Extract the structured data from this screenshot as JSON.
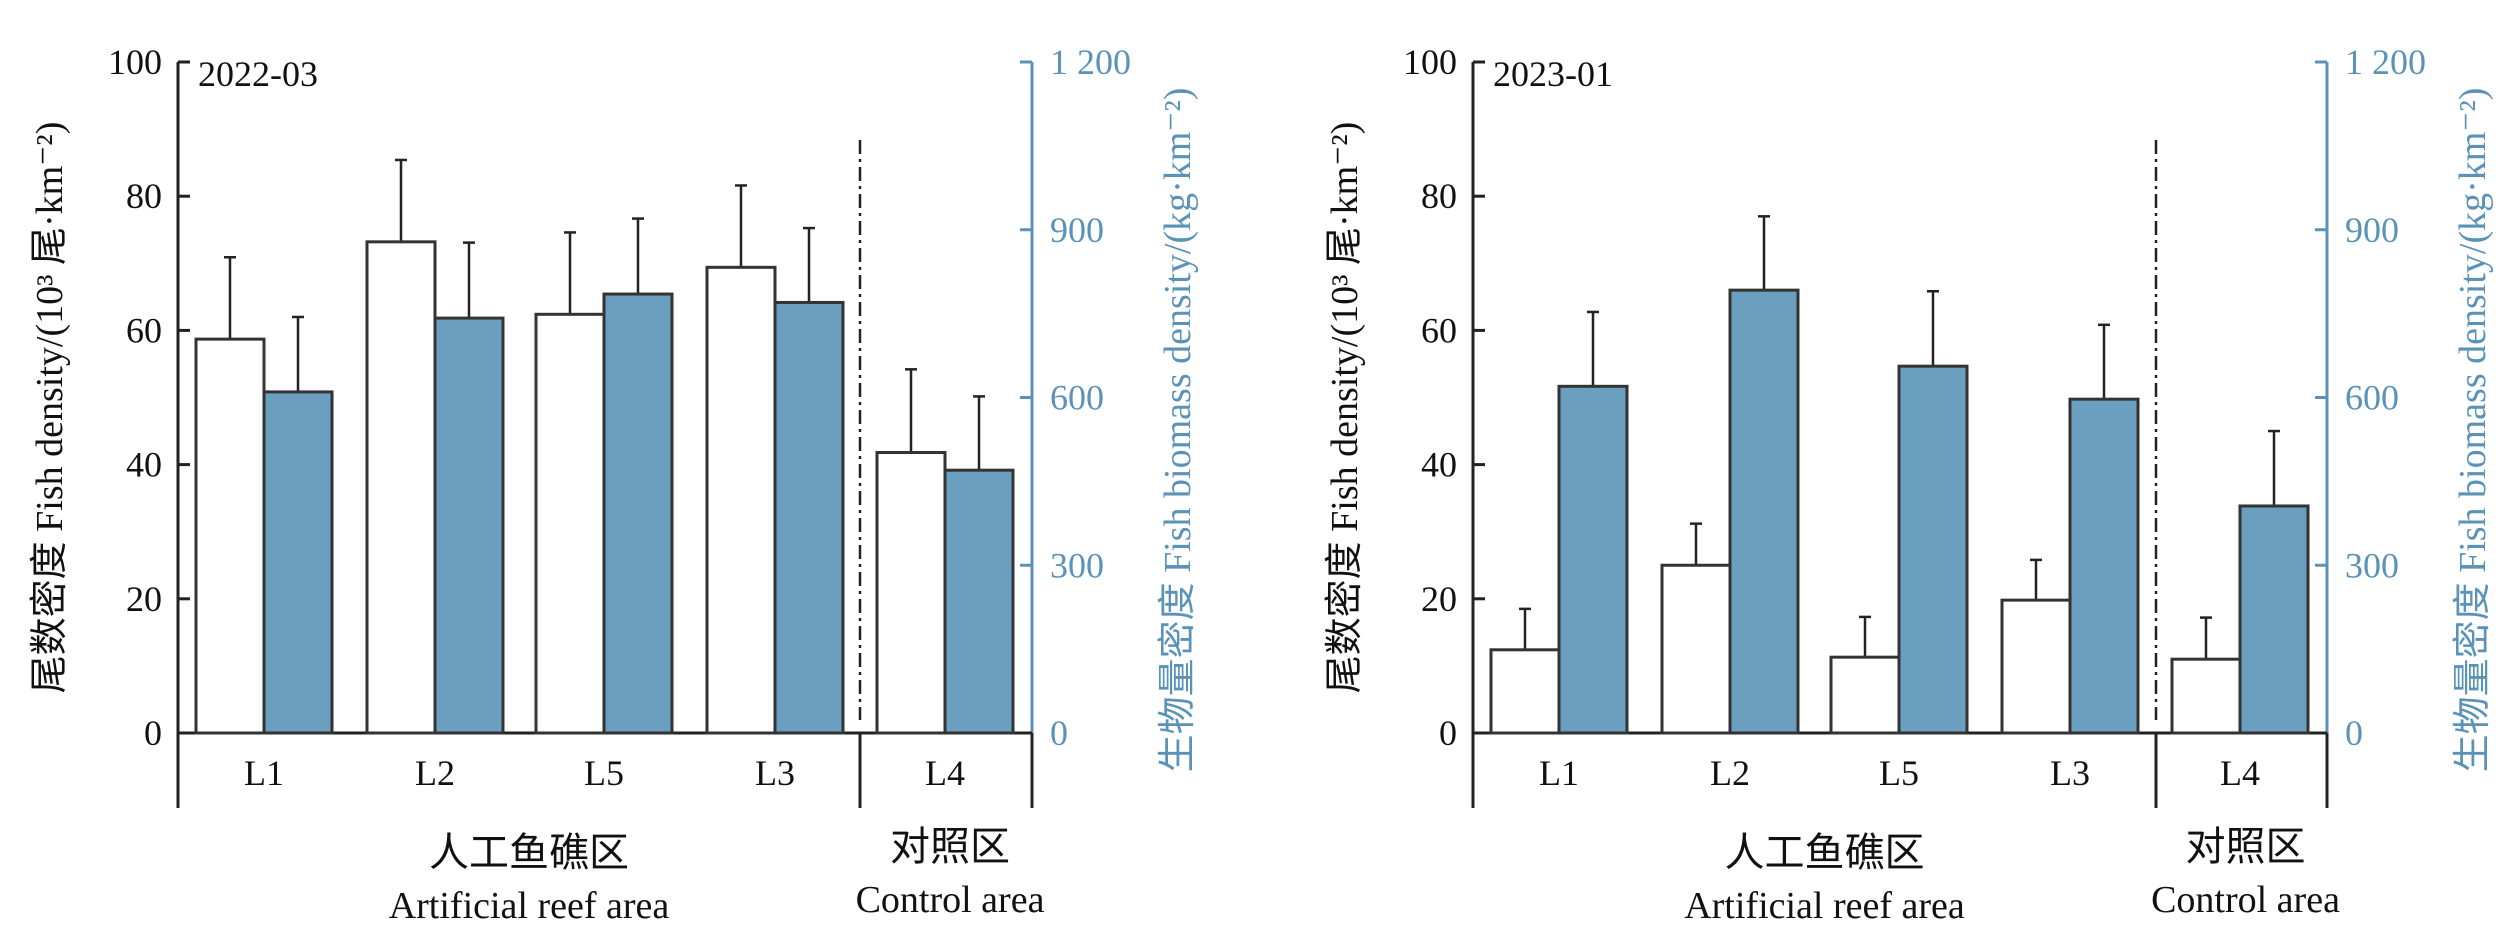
{
  "chart_data": [
    {
      "type": "bar",
      "panel_label": "2022-03",
      "categories": [
        "L1",
        "L2",
        "L5",
        "L3",
        "L4"
      ],
      "series": [
        {
          "axis": "left",
          "fill": "#ffffff",
          "values": [
            58.7,
            73.2,
            62.4,
            69.4,
            41.8
          ],
          "errors": [
            12.2,
            12.2,
            12.2,
            12.2,
            12.4
          ]
        },
        {
          "axis": "right",
          "fill": "#6a9fbf",
          "values": [
            610,
            742,
            785,
            770,
            470
          ],
          "errors": [
            134,
            135,
            135,
            133,
            132
          ]
        }
      ],
      "left_axis": {
        "title": "尾数密度 Fish density/(10³ 尾·km⁻²)",
        "ylim": [
          0,
          100
        ],
        "ticks": [
          "0",
          "20",
          "40",
          "60",
          "80",
          "100"
        ]
      },
      "right_axis": {
        "title": "生物量密度 Fish biomass density/(kg·km⁻²)",
        "ylim": [
          0,
          1200
        ],
        "ticks": [
          "0",
          "300",
          "600",
          "900",
          "1 200"
        ]
      },
      "groups": [
        {
          "cn": "人工鱼礁区",
          "en": "Artificial reef area"
        },
        {
          "cn": "对照区",
          "en": "Control area"
        }
      ]
    },
    {
      "type": "bar",
      "panel_label": "2023-01",
      "categories": [
        "L1",
        "L2",
        "L5",
        "L3",
        "L4"
      ],
      "series": [
        {
          "axis": "left",
          "fill": "#ffffff",
          "values": [
            12.4,
            25.0,
            11.3,
            19.8,
            11.0
          ],
          "errors": [
            6.1,
            6.2,
            6.0,
            6.0,
            6.2
          ]
        },
        {
          "axis": "right",
          "fill": "#6a9fbf",
          "values": [
            620,
            792,
            656,
            597,
            406
          ],
          "errors": [
            133,
            132,
            134,
            133,
            134
          ]
        }
      ],
      "left_axis": {
        "title": "尾数密度 Fish density/(10³ 尾·km⁻²)",
        "ylim": [
          0,
          100
        ],
        "ticks": [
          "0",
          "20",
          "40",
          "60",
          "80",
          "100"
        ]
      },
      "right_axis": {
        "title": "生物量密度 Fish biomass density/(kg·km⁻²)",
        "ylim": [
          0,
          1200
        ],
        "ticks": [
          "0",
          "300",
          "600",
          "900",
          "1 200"
        ]
      },
      "groups": [
        {
          "cn": "人工鱼礁区",
          "en": "Artificial reef area"
        },
        {
          "cn": "对照区",
          "en": "Control area"
        }
      ]
    }
  ],
  "colors": {
    "axis": "#222222",
    "right_axis": "#5b93b8",
    "bar_outline": "#333333"
  }
}
